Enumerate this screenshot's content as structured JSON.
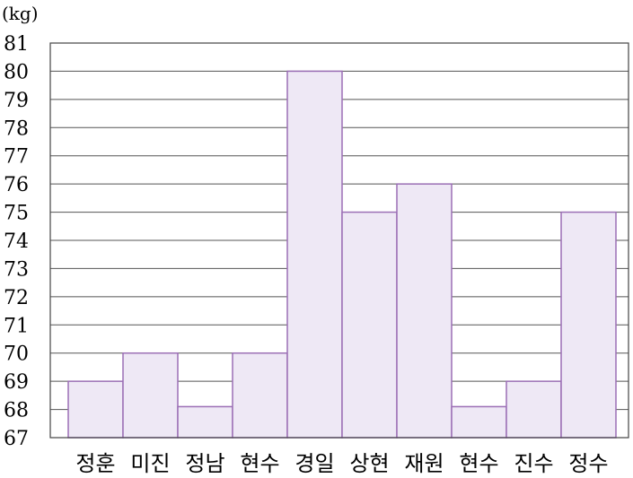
{
  "chart_data": {
    "type": "bar",
    "ylabel": "(kg)",
    "categories": [
      "정훈",
      "미진",
      "정남",
      "현수",
      "경일",
      "상현",
      "재원",
      "현수",
      "진수",
      "정수"
    ],
    "values": [
      69,
      70,
      68.1,
      70,
      80,
      75,
      76,
      68.1,
      69,
      75
    ],
    "ylim": [
      67,
      81
    ],
    "yticks": [
      67,
      68,
      69,
      70,
      71,
      72,
      73,
      74,
      75,
      76,
      77,
      78,
      79,
      80,
      81
    ],
    "grid": true,
    "colors": {
      "bar_fill": "#eee8f5",
      "bar_stroke": "#9b6fb5",
      "grid": "#555555",
      "axis": "#444444"
    }
  }
}
